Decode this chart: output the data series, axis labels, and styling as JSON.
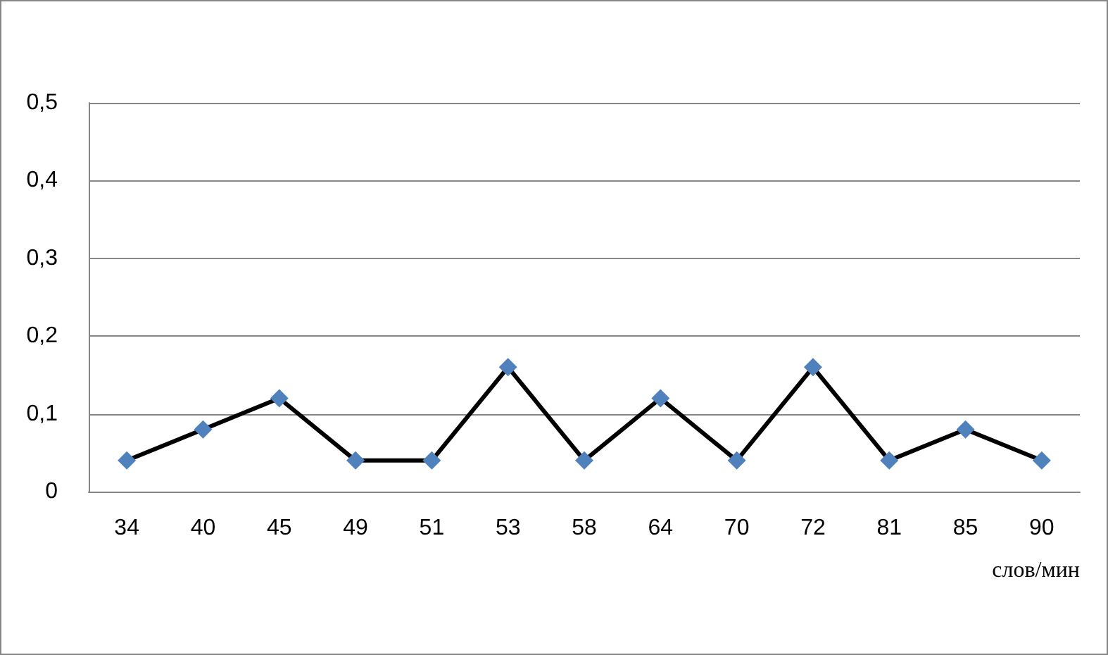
{
  "chart_data": {
    "type": "line",
    "xlabel": "слов/мин",
    "categories": [
      "34",
      "40",
      "45",
      "49",
      "51",
      "53",
      "58",
      "64",
      "70",
      "72",
      "81",
      "85",
      "90"
    ],
    "series": [
      {
        "color": "#000000",
        "colors": [
          "#4f81bd",
          "#4f81bd",
          "#4f81bd",
          "#4f81bd",
          "#4f81bd",
          "#4f81bd",
          "#4f81bd",
          "#4f81bd",
          "#4f81bd",
          "#4f81bd",
          "#4f81bd",
          "#4f81bd",
          "#4f81bd"
        ],
        "values": [
          0.04,
          0.08,
          0.12,
          0.04,
          0.04,
          0.16,
          0.04,
          0.12,
          0.04,
          0.16,
          0.04,
          0.08,
          0.04
        ]
      }
    ],
    "ylim": [
      0,
      0.5
    ],
    "yticks": [
      {
        "value": 0,
        "label": "0"
      },
      {
        "value": 0.1,
        "label": "0,1"
      },
      {
        "value": 0.2,
        "label": "0,2"
      },
      {
        "value": 0.3,
        "label": "0,3"
      },
      {
        "value": 0.4,
        "label": "0,4"
      },
      {
        "value": 0.5,
        "label": "0,5"
      }
    ],
    "grid": "y",
    "marker": "diamond",
    "line_style": "solid"
  }
}
